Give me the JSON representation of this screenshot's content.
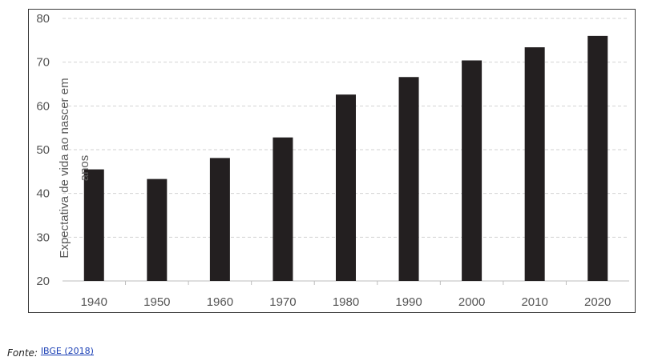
{
  "chart_data": {
    "type": "bar",
    "categories": [
      "1940",
      "1950",
      "1960",
      "1970",
      "1980",
      "1990",
      "2000",
      "2010",
      "2020"
    ],
    "values": [
      45.5,
      43.3,
      48.1,
      52.8,
      62.6,
      66.6,
      70.4,
      73.4,
      76.0
    ],
    "ylabel": "Expectativa de vida ao nascer em anos",
    "ylim": [
      20,
      80
    ],
    "yticks": [
      "20",
      "30",
      "40",
      "50",
      "60",
      "70",
      "80"
    ],
    "grid": true,
    "bar_color": "#231f20"
  },
  "source": {
    "label": "Fonte:",
    "link_text": "IBGE (2018)"
  }
}
